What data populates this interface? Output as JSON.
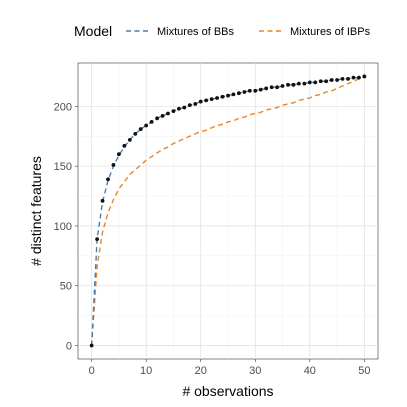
{
  "chart_data": {
    "type": "line",
    "title": "",
    "xlabel": "# observations",
    "ylabel": "# distinct features",
    "xlim": [
      -2.5,
      52.5
    ],
    "ylim": [
      -11.25,
      236.25
    ],
    "x_ticks": [
      0,
      10,
      20,
      30,
      40,
      50
    ],
    "y_ticks": [
      0,
      50,
      100,
      150,
      200
    ],
    "grid": true,
    "legend": {
      "title": "Model",
      "position": "top",
      "entries": [
        "Mixtures of BBs",
        "Mixtures of IBPs"
      ]
    },
    "points": {
      "x": [
        0,
        1,
        2,
        3,
        4,
        5,
        6,
        7,
        8,
        9,
        10,
        11,
        12,
        13,
        14,
        15,
        16,
        17,
        18,
        19,
        20,
        21,
        22,
        23,
        24,
        25,
        26,
        27,
        28,
        29,
        30,
        31,
        32,
        33,
        34,
        35,
        36,
        37,
        38,
        39,
        40,
        41,
        42,
        43,
        44,
        45,
        46,
        47,
        48,
        49,
        50
      ],
      "y": [
        0,
        89,
        121,
        139,
        151,
        160,
        167,
        172,
        177,
        181,
        184,
        187,
        190,
        192,
        194,
        196,
        198,
        199,
        201,
        202,
        204,
        205,
        206,
        207,
        208,
        209,
        210,
        211,
        212,
        213,
        213,
        214,
        215,
        216,
        216,
        217,
        218,
        218,
        219,
        219,
        220,
        220,
        221,
        221,
        222,
        222,
        223,
        223,
        224,
        224,
        225
      ]
    },
    "series": [
      {
        "name": "Mixtures of BBs",
        "color": "#4a7bab",
        "style": "dashed",
        "x": [
          0,
          1,
          2,
          3,
          4,
          5,
          6,
          7,
          8,
          9,
          10,
          11,
          12,
          13,
          14,
          15,
          16,
          17,
          18,
          19,
          20,
          21,
          22,
          23,
          24,
          25,
          26,
          27,
          28,
          29,
          30,
          31,
          32,
          33,
          34,
          35,
          36,
          37,
          38,
          39,
          40,
          41,
          42,
          43,
          44,
          45,
          46,
          47,
          48,
          49,
          50
        ],
        "y": [
          0,
          89,
          120,
          138,
          150,
          159,
          166,
          172,
          177,
          181,
          184,
          187,
          190,
          192,
          194,
          196,
          198,
          199,
          201,
          202,
          204,
          205,
          206,
          207,
          208,
          209,
          210,
          211,
          212,
          213,
          213,
          214,
          215,
          216,
          216,
          217,
          218,
          218,
          219,
          219,
          220,
          220,
          221,
          221,
          222,
          222,
          223,
          223,
          224,
          224,
          225
        ]
      },
      {
        "name": "Mixtures of IBPs",
        "color": "#e6862a",
        "style": "dashed",
        "x": [
          0,
          1,
          2,
          3,
          4,
          5,
          6,
          7,
          8,
          9,
          10,
          11,
          12,
          13,
          14,
          15,
          16,
          17,
          18,
          19,
          20,
          21,
          22,
          23,
          24,
          25,
          26,
          27,
          28,
          29,
          30,
          31,
          32,
          33,
          34,
          35,
          36,
          37,
          38,
          39,
          40,
          41,
          42,
          43,
          44,
          45,
          46,
          47,
          48,
          49,
          50
        ],
        "y": [
          0,
          66,
          95,
          111,
          122,
          131,
          137,
          143,
          147,
          151,
          155,
          158,
          161,
          164,
          166,
          169,
          171,
          173,
          175,
          177,
          179,
          180,
          182,
          184,
          185,
          187,
          188,
          190,
          191,
          193,
          194,
          195,
          197,
          198,
          199,
          201,
          202,
          203,
          205,
          206,
          207,
          209,
          210,
          212,
          213,
          215,
          217,
          219,
          221,
          223,
          225
        ]
      }
    ]
  }
}
